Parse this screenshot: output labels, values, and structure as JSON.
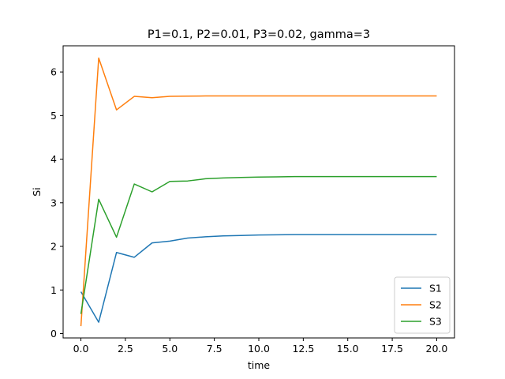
{
  "chart_data": {
    "type": "line",
    "title": "P1=0.1, P2=0.01, P3=0.02, gamma=3",
    "xlabel": "time",
    "ylabel": "Si",
    "xlim": [
      -1,
      21
    ],
    "ylim": [
      -0.1,
      6.6
    ],
    "xticks": [
      0.0,
      2.5,
      5.0,
      7.5,
      10.0,
      12.5,
      15.0,
      17.5,
      20.0
    ],
    "xtick_labels": [
      "0.0",
      "2.5",
      "5.0",
      "7.5",
      "10.0",
      "12.5",
      "15.0",
      "17.5",
      "20.0"
    ],
    "yticks": [
      0,
      1,
      2,
      3,
      4,
      5,
      6
    ],
    "ytick_labels": [
      "0",
      "1",
      "2",
      "3",
      "4",
      "5",
      "6"
    ],
    "grid": false,
    "legend_position": "lower-right",
    "x": [
      0,
      1,
      2,
      3,
      4,
      5,
      6,
      7,
      8,
      9,
      10,
      11,
      12,
      13,
      14,
      15,
      16,
      17,
      18,
      19,
      20
    ],
    "series": [
      {
        "name": "S1",
        "color": "#1f77b4",
        "values": [
          0.96,
          0.26,
          1.86,
          1.75,
          2.08,
          2.12,
          2.19,
          2.22,
          2.24,
          2.25,
          2.26,
          2.265,
          2.27,
          2.27,
          2.27,
          2.27,
          2.27,
          2.27,
          2.27,
          2.27,
          2.27
        ]
      },
      {
        "name": "S2",
        "color": "#ff7f0e",
        "values": [
          0.17,
          6.32,
          5.13,
          5.44,
          5.41,
          5.44,
          5.445,
          5.45,
          5.45,
          5.45,
          5.45,
          5.45,
          5.45,
          5.45,
          5.45,
          5.45,
          5.45,
          5.45,
          5.45,
          5.45,
          5.45
        ]
      },
      {
        "name": "S3",
        "color": "#2ca02c",
        "values": [
          0.45,
          3.08,
          2.21,
          3.43,
          3.25,
          3.49,
          3.5,
          3.55,
          3.57,
          3.58,
          3.59,
          3.595,
          3.6,
          3.6,
          3.6,
          3.6,
          3.6,
          3.6,
          3.6,
          3.6,
          3.6
        ]
      }
    ]
  }
}
